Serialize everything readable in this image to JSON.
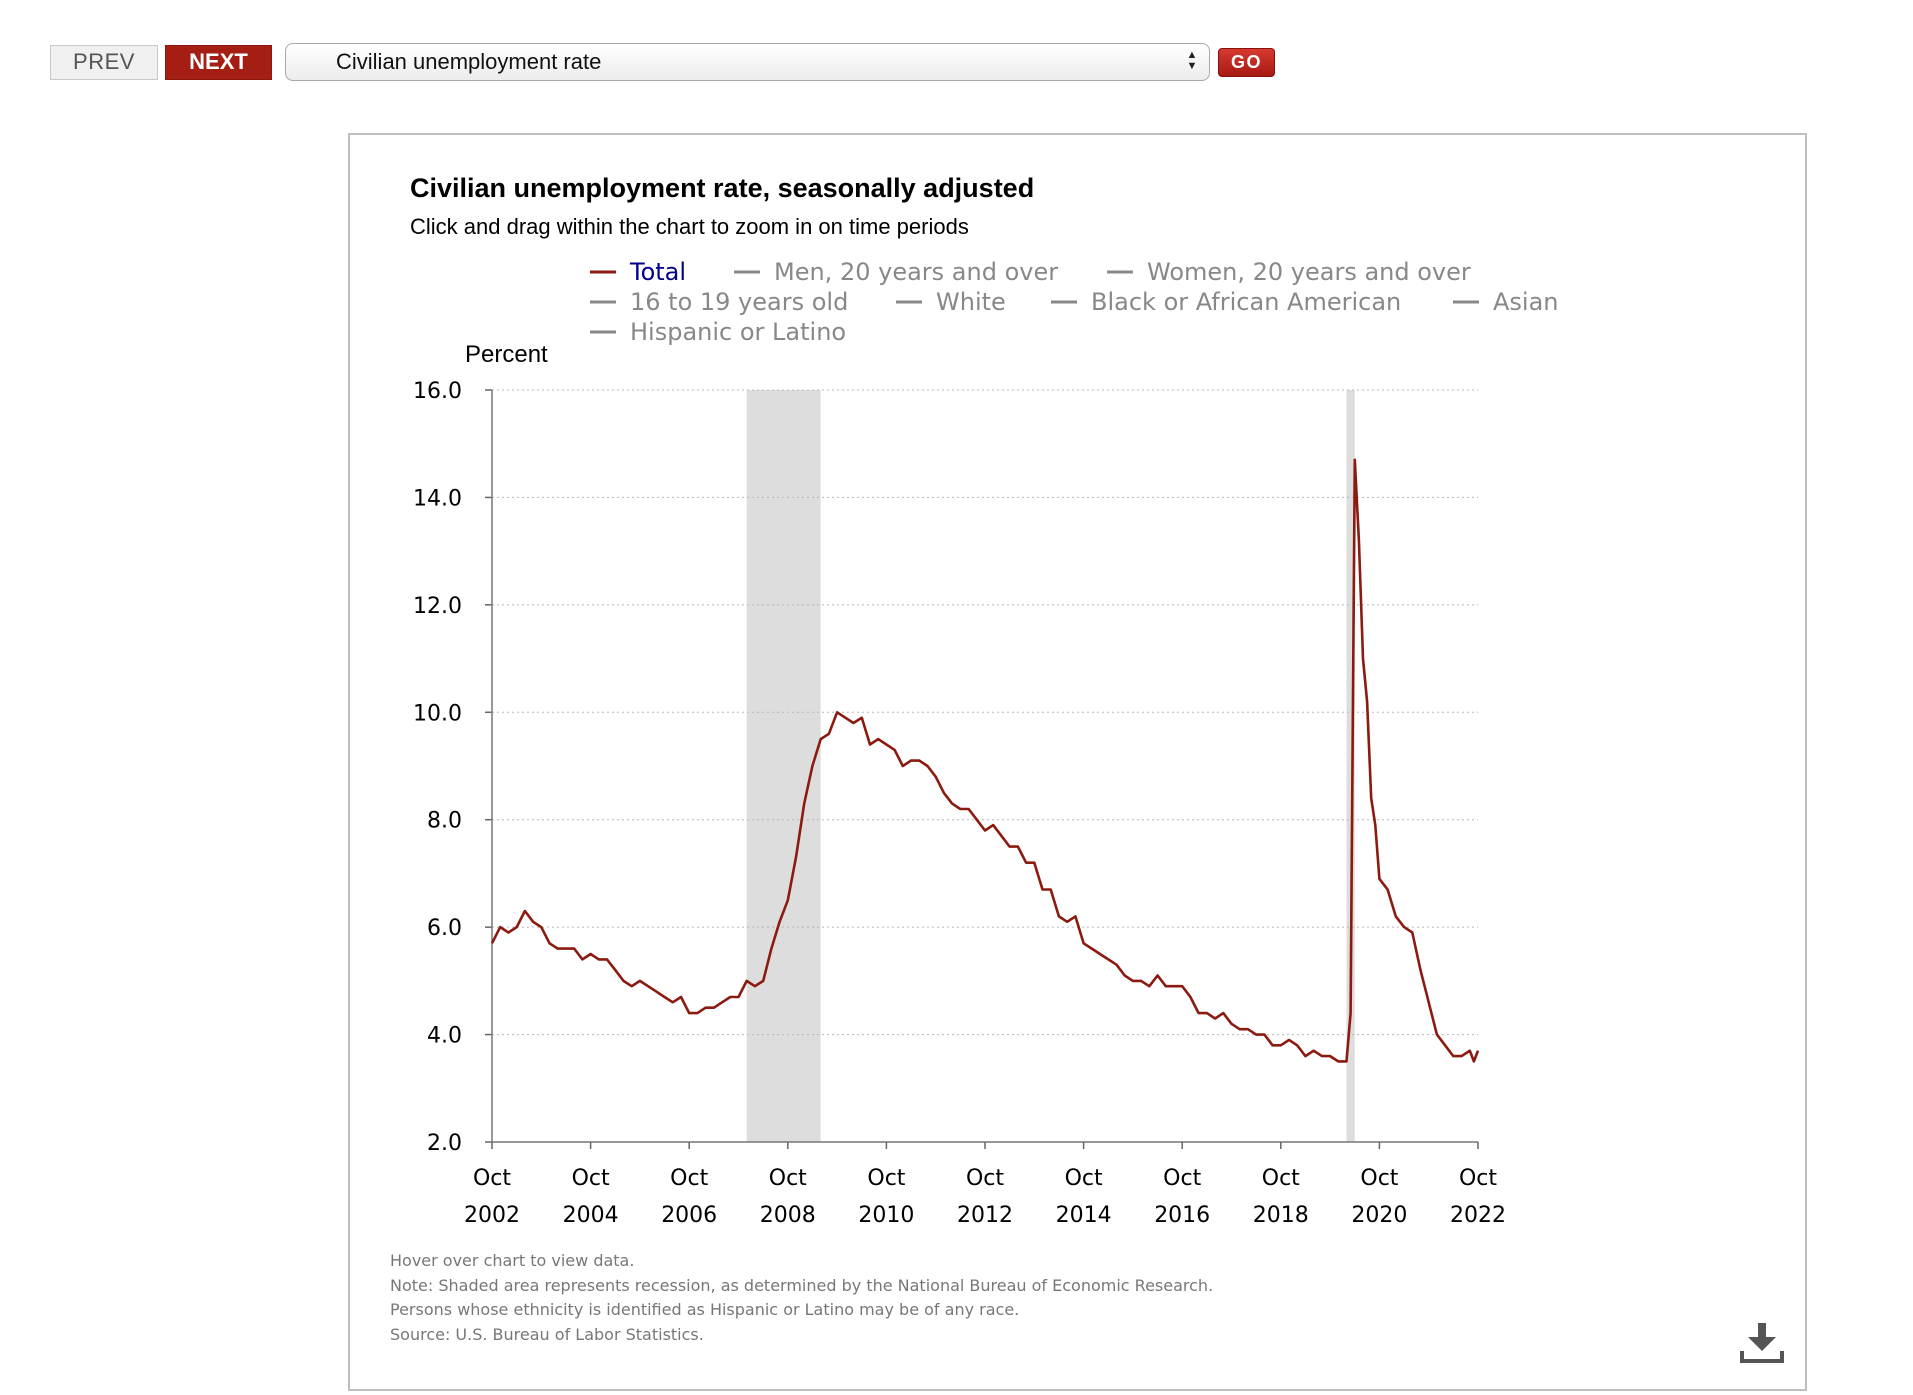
{
  "nav": {
    "prev_label": "PREV",
    "next_label": "NEXT",
    "select_value": "Civilian unemployment rate",
    "go_label": "GO"
  },
  "chart": {
    "title": "Civilian unemployment rate, seasonally adjusted",
    "subtitle": "Click and drag within the chart to zoom in on time periods",
    "notes": [
      "Hover over chart to view data.",
      "Note: Shaded area represents recession, as determined by the National Bureau of Economic Research.",
      "Persons whose ethnicity is identified as Hispanic or Latino may be of any race.",
      "Source: U.S. Bureau of Labor Statistics."
    ]
  },
  "colors": {
    "accent": "#a41e13",
    "series_total": "#8b1a10",
    "legend_inactive": "#888888",
    "legend_active": "#00008b",
    "recession": "#dddddd"
  },
  "icons": {
    "download": "download-icon",
    "select_arrows": "up-down-arrows-icon"
  },
  "chart_data": {
    "type": "line",
    "title": "Civilian unemployment rate, seasonally adjusted",
    "ylabel": "Percent",
    "ylim": [
      2.0,
      16.0
    ],
    "xlim": [
      "2002-10",
      "2022-10"
    ],
    "yticks": [
      "2.0",
      "4.0",
      "6.0",
      "8.0",
      "10.0",
      "12.0",
      "14.0",
      "16.0"
    ],
    "xticks": [
      {
        "month": "Oct",
        "year": "2002",
        "date": "2002-10"
      },
      {
        "month": "Oct",
        "year": "2004",
        "date": "2004-10"
      },
      {
        "month": "Oct",
        "year": "2006",
        "date": "2006-10"
      },
      {
        "month": "Oct",
        "year": "2008",
        "date": "2008-10"
      },
      {
        "month": "Oct",
        "year": "2010",
        "date": "2010-10"
      },
      {
        "month": "Oct",
        "year": "2012",
        "date": "2012-10"
      },
      {
        "month": "Oct",
        "year": "2014",
        "date": "2014-10"
      },
      {
        "month": "Oct",
        "year": "2016",
        "date": "2016-10"
      },
      {
        "month": "Oct",
        "year": "2018",
        "date": "2018-10"
      },
      {
        "month": "Oct",
        "year": "2020",
        "date": "2020-10"
      },
      {
        "month": "Oct",
        "year": "2022",
        "date": "2022-10"
      }
    ],
    "grid": true,
    "legend_position": "top",
    "legend": [
      {
        "name": "Total",
        "active": true
      },
      {
        "name": "Men, 20 years and over",
        "active": false
      },
      {
        "name": "Women, 20 years and over",
        "active": false
      },
      {
        "name": "16 to 19 years old",
        "active": false
      },
      {
        "name": "White",
        "active": false
      },
      {
        "name": "Black or African American",
        "active": false
      },
      {
        "name": "Asian",
        "active": false
      },
      {
        "name": "Hispanic or Latino",
        "active": false
      }
    ],
    "recessions": [
      {
        "start": "2007-12",
        "end": "2009-06"
      },
      {
        "start": "2020-02",
        "end": "2020-04"
      }
    ],
    "series": [
      {
        "name": "Total",
        "x": [
          "2002-10",
          "2002-12",
          "2003-02",
          "2003-04",
          "2003-06",
          "2003-08",
          "2003-10",
          "2003-12",
          "2004-02",
          "2004-04",
          "2004-06",
          "2004-08",
          "2004-10",
          "2004-12",
          "2005-02",
          "2005-04",
          "2005-06",
          "2005-08",
          "2005-10",
          "2005-12",
          "2006-02",
          "2006-04",
          "2006-06",
          "2006-08",
          "2006-10",
          "2006-12",
          "2007-02",
          "2007-04",
          "2007-06",
          "2007-08",
          "2007-10",
          "2007-12",
          "2008-02",
          "2008-04",
          "2008-06",
          "2008-08",
          "2008-10",
          "2008-12",
          "2009-02",
          "2009-04",
          "2009-06",
          "2009-08",
          "2009-10",
          "2009-12",
          "2010-02",
          "2010-04",
          "2010-06",
          "2010-08",
          "2010-10",
          "2010-12",
          "2011-02",
          "2011-04",
          "2011-06",
          "2011-08",
          "2011-10",
          "2011-12",
          "2012-02",
          "2012-04",
          "2012-06",
          "2012-08",
          "2012-10",
          "2012-12",
          "2013-02",
          "2013-04",
          "2013-06",
          "2013-08",
          "2013-10",
          "2013-12",
          "2014-02",
          "2014-04",
          "2014-06",
          "2014-08",
          "2014-10",
          "2014-12",
          "2015-02",
          "2015-04",
          "2015-06",
          "2015-08",
          "2015-10",
          "2015-12",
          "2016-02",
          "2016-04",
          "2016-06",
          "2016-08",
          "2016-10",
          "2016-12",
          "2017-02",
          "2017-04",
          "2017-06",
          "2017-08",
          "2017-10",
          "2017-12",
          "2018-02",
          "2018-04",
          "2018-06",
          "2018-08",
          "2018-10",
          "2018-12",
          "2019-02",
          "2019-04",
          "2019-06",
          "2019-08",
          "2019-10",
          "2019-12",
          "2020-02",
          "2020-03",
          "2020-04",
          "2020-05",
          "2020-06",
          "2020-07",
          "2020-08",
          "2020-09",
          "2020-10",
          "2020-12",
          "2021-02",
          "2021-04",
          "2021-06",
          "2021-08",
          "2021-10",
          "2021-12",
          "2022-02",
          "2022-04",
          "2022-06",
          "2022-08",
          "2022-09",
          "2022-10"
        ],
        "y": [
          5.7,
          6.0,
          5.9,
          6.0,
          6.3,
          6.1,
          6.0,
          5.7,
          5.6,
          5.6,
          5.6,
          5.4,
          5.5,
          5.4,
          5.4,
          5.2,
          5.0,
          4.9,
          5.0,
          4.9,
          4.8,
          4.7,
          4.6,
          4.7,
          4.4,
          4.4,
          4.5,
          4.5,
          4.6,
          4.7,
          4.7,
          5.0,
          4.9,
          5.0,
          5.6,
          6.1,
          6.5,
          7.3,
          8.3,
          9.0,
          9.5,
          9.6,
          10.0,
          9.9,
          9.8,
          9.9,
          9.4,
          9.5,
          9.4,
          9.3,
          9.0,
          9.1,
          9.1,
          9.0,
          8.8,
          8.5,
          8.3,
          8.2,
          8.2,
          8.0,
          7.8,
          7.9,
          7.7,
          7.5,
          7.5,
          7.2,
          7.2,
          6.7,
          6.7,
          6.2,
          6.1,
          6.2,
          5.7,
          5.6,
          5.5,
          5.4,
          5.3,
          5.1,
          5.0,
          5.0,
          4.9,
          5.1,
          4.9,
          4.9,
          4.9,
          4.7,
          4.4,
          4.4,
          4.3,
          4.4,
          4.2,
          4.1,
          4.1,
          4.0,
          4.0,
          3.8,
          3.8,
          3.9,
          3.8,
          3.6,
          3.7,
          3.6,
          3.6,
          3.5,
          3.5,
          4.4,
          14.7,
          13.2,
          11.0,
          10.2,
          8.4,
          7.9,
          6.9,
          6.7,
          6.2,
          6.0,
          5.9,
          5.2,
          4.6,
          4.0,
          3.8,
          3.6,
          3.6,
          3.7,
          3.5,
          3.7
        ]
      }
    ]
  }
}
